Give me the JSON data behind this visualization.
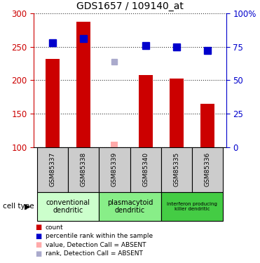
{
  "title": "GDS1657 / 109140_at",
  "samples": [
    "GSM85337",
    "GSM85338",
    "GSM85339",
    "GSM85340",
    "GSM85335",
    "GSM85336"
  ],
  "bar_values": [
    232,
    287,
    null,
    208,
    202,
    165
  ],
  "absent_bar_values": [
    null,
    null,
    108,
    null,
    null,
    null
  ],
  "rank_values": [
    78,
    81,
    null,
    76,
    75,
    72
  ],
  "absent_rank_values": [
    null,
    null,
    64,
    null,
    null,
    null
  ],
  "bar_color": "#cc0000",
  "absent_bar_color": "#ffaaaa",
  "rank_color": "#0000cc",
  "absent_rank_color": "#aaaacc",
  "ylim_left": [
    100,
    300
  ],
  "ylim_right": [
    0,
    100
  ],
  "yticks_left": [
    100,
    150,
    200,
    250,
    300
  ],
  "yticks_right": [
    0,
    25,
    50,
    75,
    100
  ],
  "ytick_labels_right": [
    "0",
    "25",
    "50",
    "75",
    "100%"
  ],
  "groups": [
    {
      "label": "conventional\ndendritic",
      "start": 0,
      "end": 2,
      "color": "#ccffcc"
    },
    {
      "label": "plasmacytoid\ndendritic",
      "start": 2,
      "end": 4,
      "color": "#88ee88"
    },
    {
      "label": "interferon producing\nkiller dendritic",
      "start": 4,
      "end": 6,
      "color": "#44cc44"
    }
  ],
  "cell_type_label": "cell type",
  "bar_width": 0.45,
  "rank_marker_size": 7,
  "dotted_line_color": "#333333",
  "sample_box_color": "#cccccc",
  "group_colors_light": [
    "#ccffcc",
    "#88ee88",
    "#44cc44"
  ]
}
